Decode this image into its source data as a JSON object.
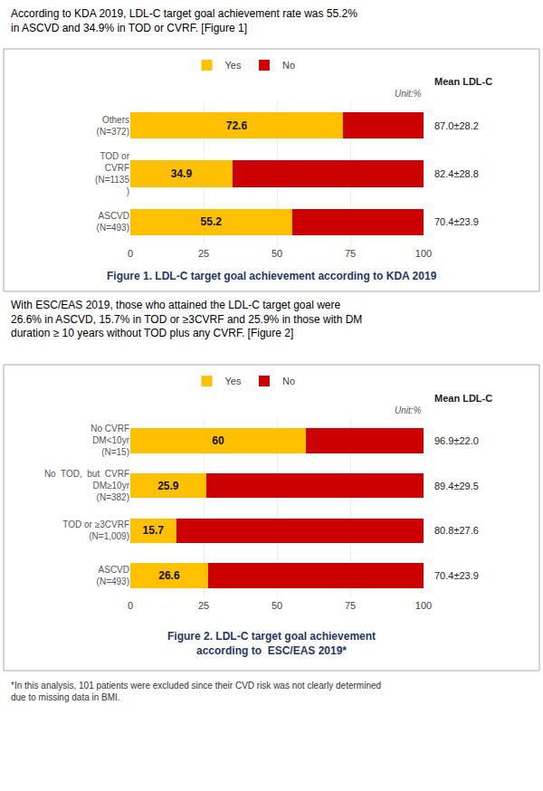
{
  "chart_data": [
    {
      "type": "bar",
      "orientation": "horizontal",
      "stacked": true,
      "title": "Figure 1. LDL-C target goal achievement according to KDA 2019",
      "subtitle": "According to KDA 2019, LDL-C target goal achievement rate was 55.2%\nin ASCVD and 34.9% in TOD or CVRF. [Figure 1]",
      "categories": [
        "ASCVD\n(N=493)",
        "TOD or\nCVRF\n(N=1135\n)",
        "Others\n(N=372)"
      ],
      "series": [
        {
          "name": "Yes",
          "color": "#FFC000",
          "values": [
            55.2,
            34.9,
            72.6
          ],
          "value_labels": [
            "55.2",
            "34.9",
            "72.6"
          ],
          "data_labels": true
        },
        {
          "name": "No",
          "color": "#CC0000",
          "values": [
            44.8,
            65.1,
            27.4
          ],
          "data_labels": false
        }
      ],
      "mean_ldl_c": {
        "title": "Mean LDL-C",
        "labels": [
          "70.4±23.9",
          "82.4±28.8",
          "87.0±28.2"
        ]
      },
      "annotations": [
        "Unit:%"
      ],
      "xlim": [
        0,
        100
      ],
      "xticks": [
        0,
        25,
        50,
        75,
        100
      ],
      "grid": true,
      "legend": "top"
    },
    {
      "type": "bar",
      "orientation": "horizontal",
      "stacked": true,
      "title": "Figure 2. LDL-C target goal achievement\naccording to  ESC/EAS 2019*",
      "subtitle": "With ESC/EAS 2019, those who attained the LDL-C target goal were\n26.6% in ASCVD, 15.7% in TOD or ≥3CVRF and 25.9% in those with DM\nduration ≥ 10 years without TOD plus any CVRF. [Figure 2]",
      "categories": [
        "ASCVD\n(N=493)",
        "TOD or ≥3CVRF\n(N=1,009)",
        "No  TOD,  but  CVRF\nDM≥10yr\n(N=382)",
        "No CVRF\nDM<10yr\n(N=15)"
      ],
      "series": [
        {
          "name": "Yes",
          "color": "#FFC000",
          "values": [
            26.6,
            15.7,
            25.9,
            60.0
          ],
          "value_labels": [
            "26.6",
            "15.7",
            "25.9",
            "60"
          ],
          "data_labels": true
        },
        {
          "name": "No",
          "color": "#CC0000",
          "values": [
            73.4,
            84.3,
            74.1,
            40.0
          ],
          "data_labels": false
        }
      ],
      "mean_ldl_c": {
        "title": "Mean LDL-C",
        "labels": [
          "70.4±23.9",
          "80.8±27.6",
          "89.4±29.5",
          "96.9±22.0"
        ]
      },
      "annotations": [
        "Unit:%",
        "*In this analysis, 101 patients were excluded since their CVD risk was not clearly determined\ndue to missing data in BMI."
      ],
      "xlim": [
        0,
        100
      ],
      "xticks": [
        0,
        25,
        50,
        75,
        100
      ],
      "grid": true,
      "legend": "top"
    }
  ]
}
